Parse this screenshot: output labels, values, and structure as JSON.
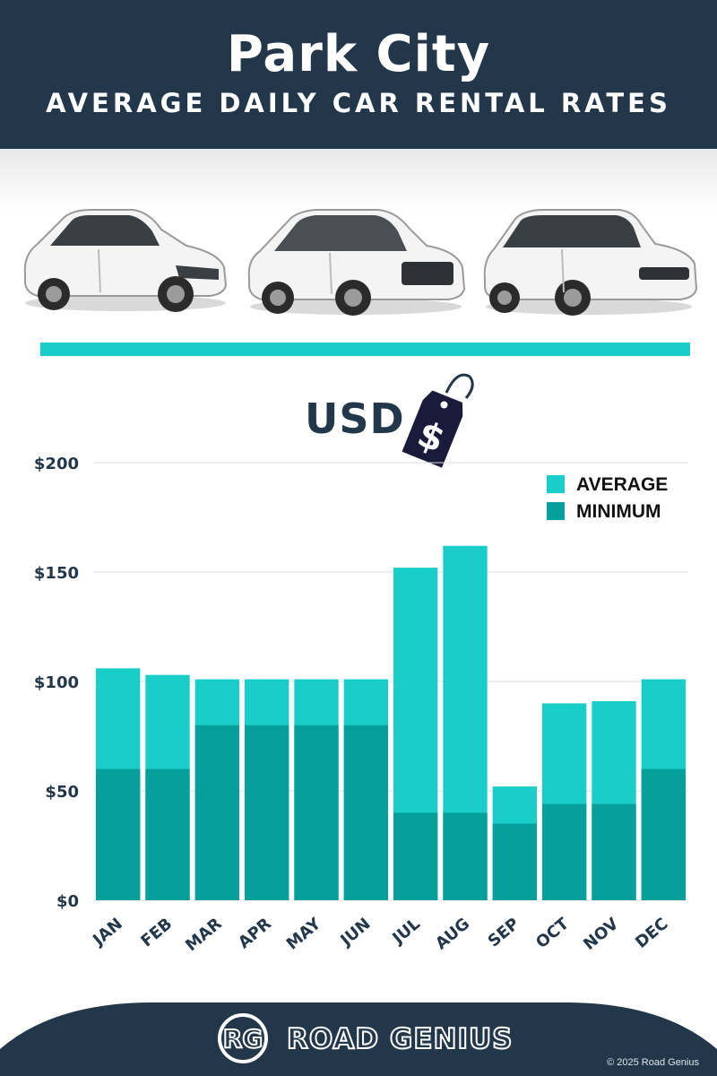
{
  "header": {
    "title": "Park City",
    "subtitle": "AVERAGE DAILY CAR RENTAL RATES"
  },
  "currency_label": "USD",
  "price_tag_symbol": "$",
  "chart_data": {
    "type": "bar",
    "stacked": false,
    "overlaid": true,
    "categories": [
      "JAN",
      "FEB",
      "MAR",
      "APR",
      "MAY",
      "JUN",
      "JUL",
      "AUG",
      "SEP",
      "OCT",
      "NOV",
      "DEC"
    ],
    "series": [
      {
        "name": "AVERAGE",
        "color": "#19cdc9",
        "values": [
          106,
          103,
          101,
          101,
          101,
          101,
          152,
          162,
          52,
          90,
          91,
          101
        ]
      },
      {
        "name": "MINIMUM",
        "color": "#05a09b",
        "values": [
          60,
          60,
          80,
          80,
          80,
          80,
          40,
          40,
          35,
          44,
          44,
          60
        ]
      }
    ],
    "ylim": [
      0,
      200
    ],
    "yticks": [
      0,
      50,
      100,
      150,
      200
    ],
    "ytick_labels": [
      "$0",
      "$50",
      "$100",
      "$150",
      "$200"
    ],
    "grid": true,
    "legend_position": "top-right"
  },
  "footer": {
    "logo_mark": "RG",
    "brand": "ROAD GENIUS",
    "copyright": "© 2025 Road Genius"
  },
  "colors": {
    "navy": "#22374a",
    "teal_light": "#19cdc9",
    "teal_dark": "#05a09b"
  }
}
